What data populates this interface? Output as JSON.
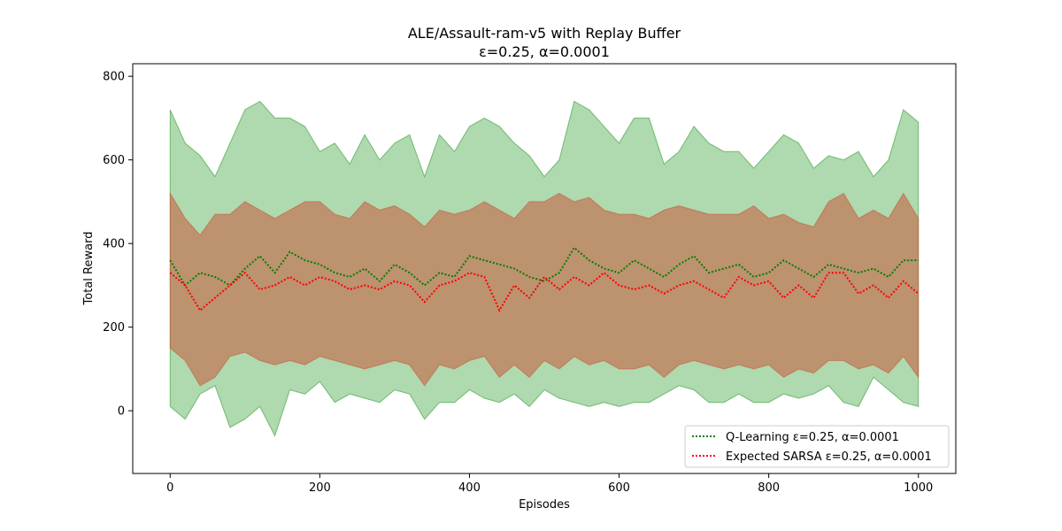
{
  "chart_data": {
    "type": "line",
    "title": "ALE/Assault-ram-v5 with Replay Buffer",
    "subtitle": "ε=0.25, α=0.0001",
    "xlabel": "Episodes",
    "ylabel": "Total Reward",
    "xlim": [
      -50,
      1050
    ],
    "ylim": [
      -150,
      830
    ],
    "xticks": [
      0,
      200,
      400,
      600,
      800,
      1000
    ],
    "yticks": [
      0,
      200,
      400,
      600,
      800
    ],
    "grid": false,
    "legend_position": "bottom-right",
    "x": [
      0,
      20,
      40,
      60,
      80,
      100,
      120,
      140,
      160,
      180,
      200,
      220,
      240,
      260,
      280,
      300,
      320,
      340,
      360,
      380,
      400,
      420,
      440,
      460,
      480,
      500,
      520,
      540,
      560,
      580,
      600,
      620,
      640,
      660,
      680,
      700,
      720,
      740,
      760,
      780,
      800,
      820,
      840,
      860,
      880,
      900,
      920,
      940,
      960,
      980,
      1000
    ],
    "series": [
      {
        "name": "Q-Learning ε=0.25, α=0.0001",
        "color": "#008000",
        "band_color": "#2e9b2e",
        "mean": [
          360,
          300,
          330,
          320,
          300,
          340,
          370,
          330,
          380,
          360,
          350,
          330,
          320,
          340,
          310,
          350,
          330,
          300,
          330,
          320,
          370,
          360,
          350,
          340,
          320,
          310,
          330,
          390,
          360,
          340,
          330,
          360,
          340,
          320,
          350,
          370,
          330,
          340,
          350,
          320,
          330,
          360,
          340,
          320,
          350,
          340,
          330,
          340,
          320,
          360,
          360
        ],
        "upper": [
          720,
          640,
          610,
          560,
          640,
          720,
          740,
          700,
          700,
          680,
          620,
          640,
          590,
          660,
          600,
          640,
          660,
          560,
          660,
          620,
          680,
          700,
          680,
          640,
          610,
          560,
          600,
          740,
          720,
          680,
          640,
          700,
          700,
          590,
          620,
          680,
          640,
          620,
          620,
          580,
          620,
          660,
          640,
          580,
          610,
          600,
          620,
          560,
          600,
          720,
          690
        ],
        "lower": [
          10,
          -20,
          40,
          60,
          -40,
          -20,
          10,
          -60,
          50,
          40,
          70,
          20,
          40,
          30,
          20,
          50,
          40,
          -20,
          20,
          20,
          50,
          30,
          20,
          40,
          10,
          50,
          30,
          20,
          10,
          20,
          10,
          20,
          20,
          40,
          60,
          50,
          20,
          20,
          40,
          20,
          20,
          40,
          30,
          40,
          60,
          20,
          10,
          80,
          50,
          20,
          10
        ]
      },
      {
        "name": "Expected SARSA ε=0.25, α=0.0001",
        "color": "#ff0000",
        "band_color": "#c8583b",
        "mean": [
          330,
          300,
          240,
          270,
          300,
          330,
          290,
          300,
          320,
          300,
          320,
          310,
          290,
          300,
          290,
          310,
          300,
          260,
          300,
          310,
          330,
          320,
          240,
          300,
          270,
          320,
          290,
          320,
          300,
          330,
          300,
          290,
          300,
          280,
          300,
          310,
          290,
          270,
          320,
          300,
          310,
          270,
          300,
          270,
          330,
          330,
          280,
          300,
          270,
          310,
          280
        ],
        "upper": [
          520,
          460,
          420,
          470,
          470,
          500,
          480,
          460,
          480,
          500,
          500,
          470,
          460,
          500,
          480,
          490,
          470,
          440,
          480,
          470,
          480,
          500,
          480,
          460,
          500,
          500,
          520,
          500,
          510,
          480,
          470,
          470,
          460,
          480,
          490,
          480,
          470,
          470,
          470,
          490,
          460,
          470,
          450,
          440,
          500,
          520,
          460,
          480,
          460,
          520,
          460
        ],
        "lower": [
          150,
          120,
          60,
          80,
          130,
          140,
          120,
          110,
          120,
          110,
          130,
          120,
          110,
          100,
          110,
          120,
          110,
          60,
          110,
          100,
          120,
          130,
          80,
          110,
          80,
          120,
          100,
          130,
          110,
          120,
          100,
          100,
          110,
          80,
          110,
          120,
          110,
          100,
          110,
          100,
          110,
          80,
          100,
          90,
          120,
          120,
          100,
          110,
          90,
          130,
          80
        ]
      }
    ]
  }
}
